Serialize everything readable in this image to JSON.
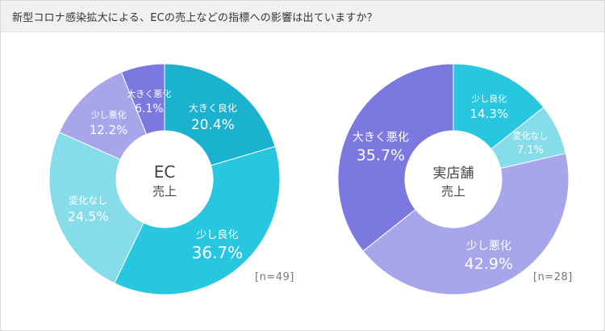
{
  "title": "新型コロナ感染拡大による、ECの売上などの指標への影響は出ていますか？",
  "chart_data": [
    {
      "type": "pie",
      "center_label": [
        "EC",
        "売上"
      ],
      "n_label": "[n=49]",
      "categories": [
        "大きく良化",
        "少し良化",
        "変化なし",
        "少し悪化",
        "大きく悪化"
      ],
      "values": [
        20.4,
        36.7,
        24.5,
        12.2,
        6.1
      ],
      "value_labels": [
        "20.4%",
        "36.7%",
        "24.5%",
        "12.2%",
        "6.1%"
      ],
      "colors": [
        "#1ab2cf",
        "#27c7df",
        "#86dde9",
        "#a7a6ea",
        "#7b78e0"
      ]
    },
    {
      "type": "pie",
      "center_label": [
        "実店舗",
        "売上"
      ],
      "n_label": "[n=28]",
      "categories": [
        "少し良化",
        "変化なし",
        "少し悪化",
        "大きく悪化"
      ],
      "values": [
        14.3,
        7.1,
        42.9,
        35.7
      ],
      "value_labels": [
        "14.3%",
        "7.1%",
        "42.9%",
        "35.7%"
      ],
      "colors": [
        "#27c7df",
        "#86dde9",
        "#a7a6ea",
        "#7b78e0"
      ]
    }
  ]
}
